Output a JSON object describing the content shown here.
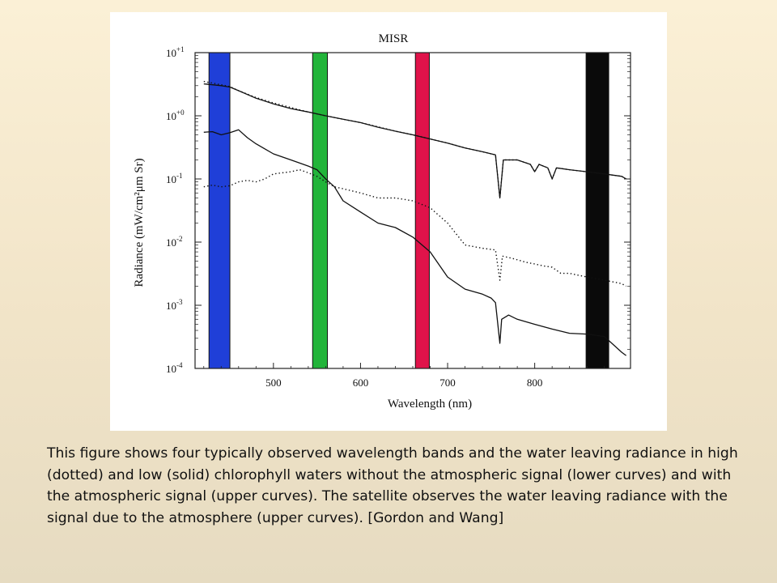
{
  "slide": {
    "caption": "This figure shows four typically observed wavelength bands and the water leaving radiance in high (dotted) and low (solid) chlorophyll waters without the atmospheric signal (lower curves) and with the atmospheric signal (upper curves). The satellite observes the water leaving radiance with the signal due to the atmosphere (upper curves). [Gordon and Wang]"
  },
  "chart_data": {
    "type": "line",
    "title": "MISR",
    "xlabel": "Wavelength (nm)",
    "ylabel": "Radiance  (mW/cm²μm Sr)",
    "x_range": [
      410,
      910
    ],
    "y_range": [
      0.0001,
      10
    ],
    "y_scale": "log",
    "grid": false,
    "x_ticks": [
      500,
      600,
      700,
      800
    ],
    "y_tick_labels": [
      {
        "value": 10,
        "mantissa": "10",
        "exponent": "+1"
      },
      {
        "value": 1,
        "mantissa": "10",
        "exponent": "+0"
      },
      {
        "value": 0.1,
        "mantissa": "10",
        "exponent": "-1"
      },
      {
        "value": 0.01,
        "mantissa": "10",
        "exponent": "-2"
      },
      {
        "value": 0.001,
        "mantissa": "10",
        "exponent": "-3"
      },
      {
        "value": 0.0001,
        "mantissa": "10",
        "exponent": "-4"
      }
    ],
    "bands": [
      {
        "from": 426,
        "to": 450,
        "color": "#1f3fd8"
      },
      {
        "from": 545,
        "to": 562,
        "color": "#22b43a"
      },
      {
        "from": 663,
        "to": 679,
        "color": "#e0134a"
      },
      {
        "from": 859,
        "to": 885,
        "color": "#0a0a0a"
      }
    ],
    "series": [
      {
        "style": "solid",
        "points": [
          [
            420,
            3.2
          ],
          [
            430,
            3.1
          ],
          [
            440,
            3.0
          ],
          [
            450,
            2.85
          ],
          [
            460,
            2.5
          ],
          [
            480,
            1.9
          ],
          [
            500,
            1.55
          ],
          [
            520,
            1.3
          ],
          [
            540,
            1.15
          ],
          [
            560,
            1.0
          ],
          [
            580,
            0.88
          ],
          [
            600,
            0.78
          ],
          [
            620,
            0.66
          ],
          [
            640,
            0.57
          ],
          [
            660,
            0.5
          ],
          [
            680,
            0.43
          ],
          [
            700,
            0.37
          ],
          [
            720,
            0.31
          ],
          [
            740,
            0.27
          ],
          [
            755,
            0.24
          ],
          [
            760,
            0.05
          ],
          [
            764,
            0.2
          ],
          [
            780,
            0.2
          ],
          [
            795,
            0.17
          ],
          [
            800,
            0.13
          ],
          [
            805,
            0.17
          ],
          [
            815,
            0.15
          ],
          [
            820,
            0.1
          ],
          [
            825,
            0.15
          ],
          [
            840,
            0.14
          ],
          [
            860,
            0.13
          ],
          [
            880,
            0.12
          ],
          [
            900,
            0.11
          ],
          [
            905,
            0.1
          ]
        ]
      },
      {
        "style": "dotted",
        "points": [
          [
            420,
            3.5
          ],
          [
            430,
            3.3
          ],
          [
            440,
            3.1
          ],
          [
            450,
            2.9
          ],
          [
            460,
            2.5
          ],
          [
            480,
            1.95
          ],
          [
            500,
            1.6
          ],
          [
            520,
            1.35
          ],
          [
            540,
            1.15
          ],
          [
            560,
            1.0
          ],
          [
            580,
            0.88
          ],
          [
            600,
            0.78
          ],
          [
            620,
            0.67
          ],
          [
            640,
            0.57
          ],
          [
            660,
            0.5
          ],
          [
            680,
            0.43
          ],
          [
            700,
            0.37
          ],
          [
            720,
            0.31
          ],
          [
            740,
            0.27
          ],
          [
            755,
            0.24
          ],
          [
            760,
            0.05
          ],
          [
            764,
            0.2
          ],
          [
            780,
            0.2
          ],
          [
            795,
            0.17
          ],
          [
            800,
            0.13
          ],
          [
            805,
            0.17
          ],
          [
            815,
            0.15
          ],
          [
            820,
            0.1
          ],
          [
            825,
            0.15
          ],
          [
            840,
            0.14
          ],
          [
            860,
            0.13
          ],
          [
            880,
            0.12
          ],
          [
            900,
            0.11
          ],
          [
            905,
            0.1
          ]
        ]
      },
      {
        "style": "solid",
        "points": [
          [
            420,
            0.55
          ],
          [
            430,
            0.56
          ],
          [
            440,
            0.5
          ],
          [
            450,
            0.54
          ],
          [
            460,
            0.6
          ],
          [
            470,
            0.45
          ],
          [
            480,
            0.36
          ],
          [
            490,
            0.3
          ],
          [
            500,
            0.25
          ],
          [
            520,
            0.2
          ],
          [
            540,
            0.16
          ],
          [
            550,
            0.14
          ],
          [
            560,
            0.1
          ],
          [
            570,
            0.075
          ],
          [
            580,
            0.045
          ],
          [
            600,
            0.03
          ],
          [
            620,
            0.02
          ],
          [
            640,
            0.017
          ],
          [
            660,
            0.012
          ],
          [
            680,
            0.007
          ],
          [
            700,
            0.0028
          ],
          [
            720,
            0.0018
          ],
          [
            740,
            0.0015
          ],
          [
            750,
            0.0013
          ],
          [
            755,
            0.0011
          ],
          [
            760,
            0.00025
          ],
          [
            762,
            0.0006
          ],
          [
            770,
            0.0007
          ],
          [
            780,
            0.0006
          ],
          [
            800,
            0.0005
          ],
          [
            820,
            0.00042
          ],
          [
            840,
            0.00036
          ],
          [
            860,
            0.00035
          ],
          [
            880,
            0.00032
          ],
          [
            900,
            0.00018
          ],
          [
            905,
            0.00016
          ]
        ]
      },
      {
        "style": "dotted",
        "points": [
          [
            420,
            0.075
          ],
          [
            430,
            0.08
          ],
          [
            440,
            0.075
          ],
          [
            450,
            0.078
          ],
          [
            460,
            0.09
          ],
          [
            470,
            0.095
          ],
          [
            480,
            0.09
          ],
          [
            490,
            0.1
          ],
          [
            500,
            0.12
          ],
          [
            520,
            0.13
          ],
          [
            530,
            0.14
          ],
          [
            540,
            0.125
          ],
          [
            550,
            0.11
          ],
          [
            560,
            0.09
          ],
          [
            570,
            0.075
          ],
          [
            580,
            0.07
          ],
          [
            600,
            0.06
          ],
          [
            620,
            0.05
          ],
          [
            640,
            0.05
          ],
          [
            660,
            0.045
          ],
          [
            680,
            0.035
          ],
          [
            700,
            0.02
          ],
          [
            720,
            0.009
          ],
          [
            740,
            0.008
          ],
          [
            755,
            0.0075
          ],
          [
            760,
            0.0025
          ],
          [
            763,
            0.006
          ],
          [
            775,
            0.0055
          ],
          [
            790,
            0.0048
          ],
          [
            800,
            0.0045
          ],
          [
            810,
            0.0042
          ],
          [
            820,
            0.004
          ],
          [
            830,
            0.0032
          ],
          [
            840,
            0.0032
          ],
          [
            860,
            0.0028
          ],
          [
            880,
            0.0025
          ],
          [
            900,
            0.0022
          ],
          [
            905,
            0.002
          ]
        ]
      }
    ]
  }
}
